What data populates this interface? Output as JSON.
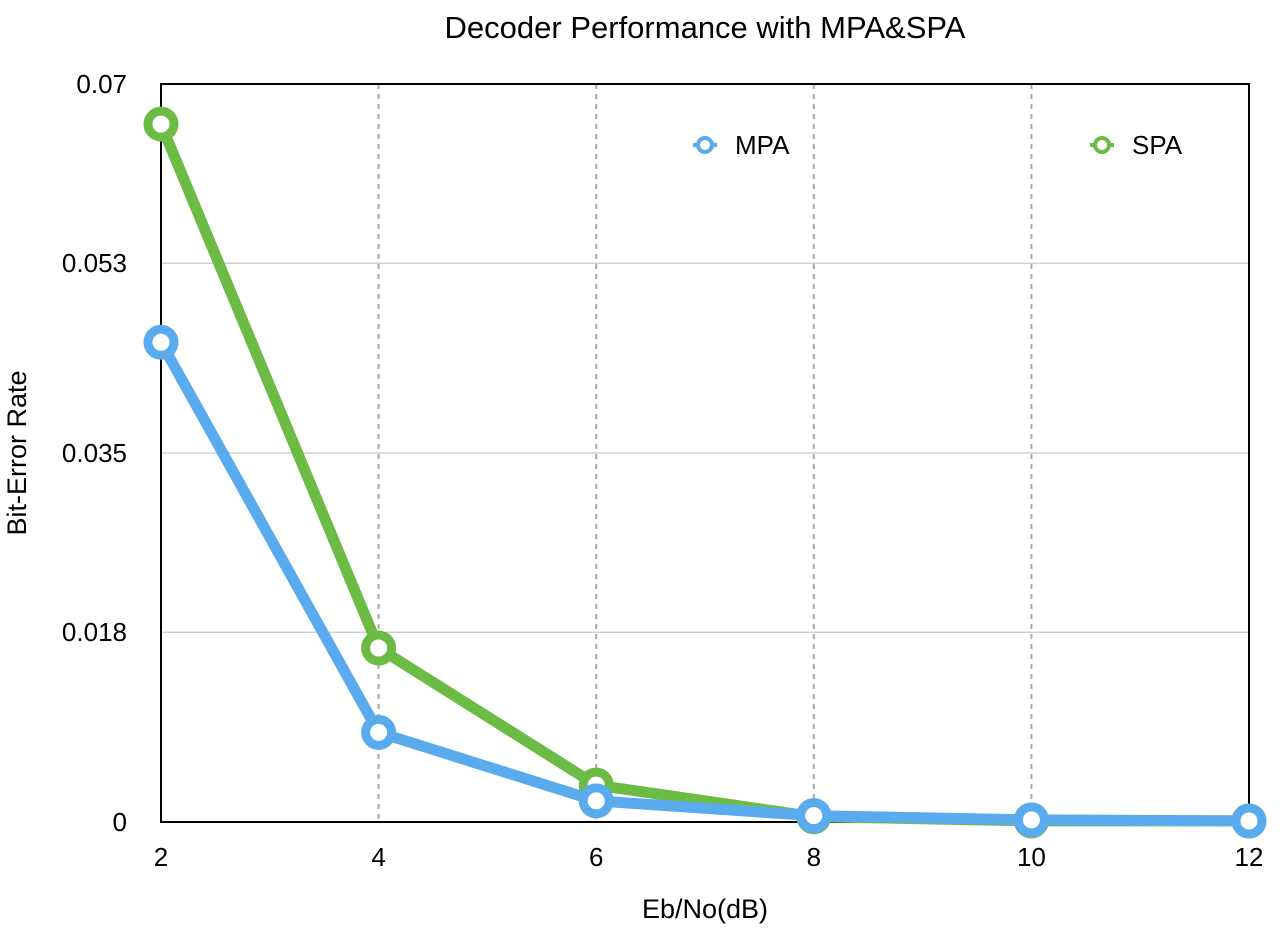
{
  "chart_data": {
    "type": "line",
    "title": "Decoder Performance with MPA&SPA",
    "xlabel": "Eb/No(dB)",
    "ylabel": "Bit-Error Rate",
    "x": [
      2,
      4,
      6,
      8,
      10,
      12
    ],
    "xticks": [
      "2",
      "4",
      "6",
      "8",
      "10",
      "12"
    ],
    "yticks": [
      0,
      0.018,
      0.035,
      0.053,
      0.07
    ],
    "ytick_labels": [
      "0",
      "0.018",
      "0.035",
      "0.053",
      "0.07"
    ],
    "xlim": [
      2,
      12
    ],
    "ylim": [
      0,
      0.07
    ],
    "grid": {
      "vertical": "dashed",
      "horizontal": "solid"
    },
    "legend_placement": "top",
    "series": [
      {
        "name": "MPA",
        "color": "#5aabee",
        "values": [
          0.0455,
          0.0085,
          0.002,
          0.0006,
          0.0002,
          0.0001
        ]
      },
      {
        "name": "SPA",
        "color": "#6cbb45",
        "values": [
          0.0662,
          0.0165,
          0.0035,
          0.0005,
          0.0001,
          0.0001
        ]
      }
    ]
  }
}
